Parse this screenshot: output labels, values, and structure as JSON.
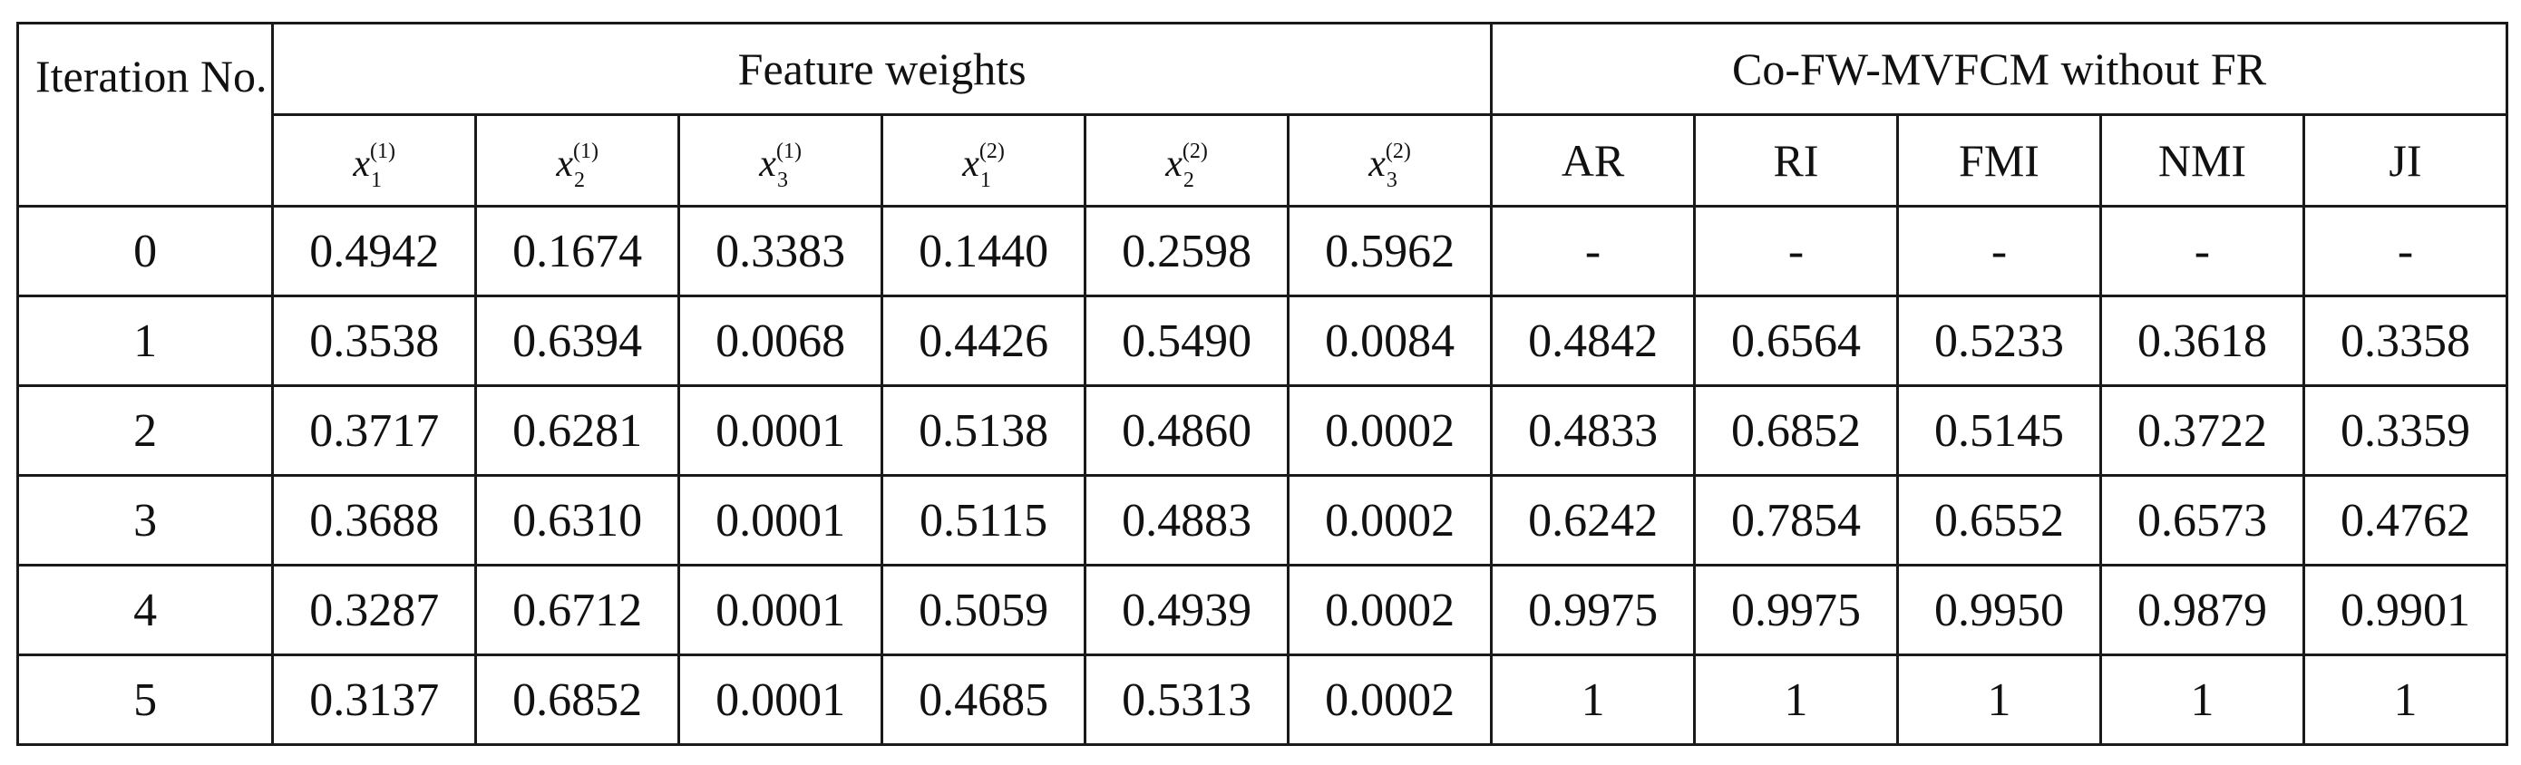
{
  "table": {
    "iteration_header": "Iteration No.",
    "feature_weights_header": "Feature weights",
    "metrics_header": "Co-FW-MVFCM without FR",
    "feature_columns": [
      {
        "var": "x",
        "sub": "1",
        "sup": "(1)"
      },
      {
        "var": "x",
        "sub": "2",
        "sup": "(1)"
      },
      {
        "var": "x",
        "sub": "3",
        "sup": "(1)"
      },
      {
        "var": "x",
        "sub": "1",
        "sup": "(2)"
      },
      {
        "var": "x",
        "sub": "2",
        "sup": "(2)"
      },
      {
        "var": "x",
        "sub": "3",
        "sup": "(2)"
      }
    ],
    "metric_columns": [
      "AR",
      "RI",
      "FMI",
      "NMI",
      "JI"
    ],
    "rows": [
      {
        "iteration": "0",
        "weights": [
          "0.4942",
          "0.1674",
          "0.3383",
          "0.1440",
          "0.2598",
          "0.5962"
        ],
        "metrics": [
          "-",
          "-",
          "-",
          "-",
          "-"
        ]
      },
      {
        "iteration": "1",
        "weights": [
          "0.3538",
          "0.6394",
          "0.0068",
          "0.4426",
          "0.5490",
          "0.0084"
        ],
        "metrics": [
          "0.4842",
          "0.6564",
          "0.5233",
          "0.3618",
          "0.3358"
        ]
      },
      {
        "iteration": "2",
        "weights": [
          "0.3717",
          "0.6281",
          "0.0001",
          "0.5138",
          "0.4860",
          "0.0002"
        ],
        "metrics": [
          "0.4833",
          "0.6852",
          "0.5145",
          "0.3722",
          "0.3359"
        ]
      },
      {
        "iteration": "3",
        "weights": [
          "0.3688",
          "0.6310",
          "0.0001",
          "0.5115",
          "0.4883",
          "0.0002"
        ],
        "metrics": [
          "0.6242",
          "0.7854",
          "0.6552",
          "0.6573",
          "0.4762"
        ]
      },
      {
        "iteration": "4",
        "weights": [
          "0.3287",
          "0.6712",
          "0.0001",
          "0.5059",
          "0.4939",
          "0.0002"
        ],
        "metrics": [
          "0.9975",
          "0.9975",
          "0.9950",
          "0.9879",
          "0.9901"
        ]
      },
      {
        "iteration": "5",
        "weights": [
          "0.3137",
          "0.6852",
          "0.0001",
          "0.4685",
          "0.5313",
          "0.0002"
        ],
        "metrics": [
          "1",
          "1",
          "1",
          "1",
          "1"
        ]
      }
    ]
  }
}
